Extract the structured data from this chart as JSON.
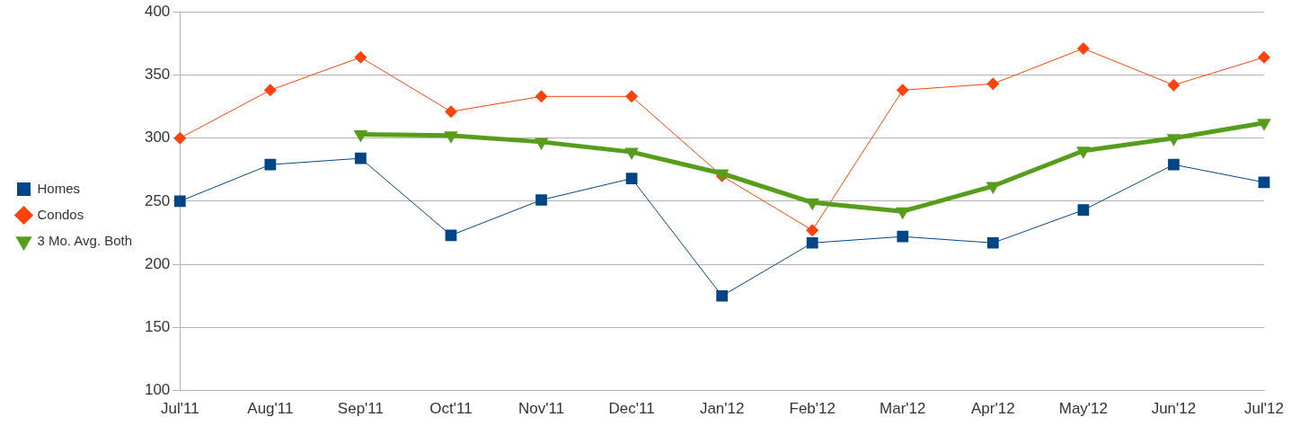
{
  "chart_data": {
    "type": "line",
    "categories": [
      "Jul'11",
      "Aug'11",
      "Sep'11",
      "Oct'11",
      "Nov'11",
      "Dec'11",
      "Jan'12",
      "Feb'12",
      "Mar'12",
      "Apr'12",
      "May'12",
      "Jun'12",
      "Jul'12"
    ],
    "series": [
      {
        "name": "Homes",
        "color": "#004586",
        "marker": "square",
        "values": [
          250,
          279,
          284,
          223,
          251,
          268,
          175,
          217,
          222,
          217,
          243,
          279,
          265
        ]
      },
      {
        "name": "Condos",
        "color": "#ff420e",
        "marker": "diamond",
        "values": [
          300,
          338,
          364,
          321,
          333,
          333,
          270,
          227,
          338,
          343,
          371,
          342,
          364
        ]
      },
      {
        "name": "3 Mo. Avg. Both",
        "color": "#579d1c",
        "marker": "triangle",
        "values": [
          null,
          null,
          303,
          302,
          297,
          289,
          272,
          249,
          242,
          262,
          290,
          300,
          312
        ]
      }
    ],
    "ylim": [
      100,
      400
    ],
    "yticks": [
      100,
      150,
      200,
      250,
      300,
      350,
      400
    ],
    "grid": "y",
    "legend": "left"
  }
}
